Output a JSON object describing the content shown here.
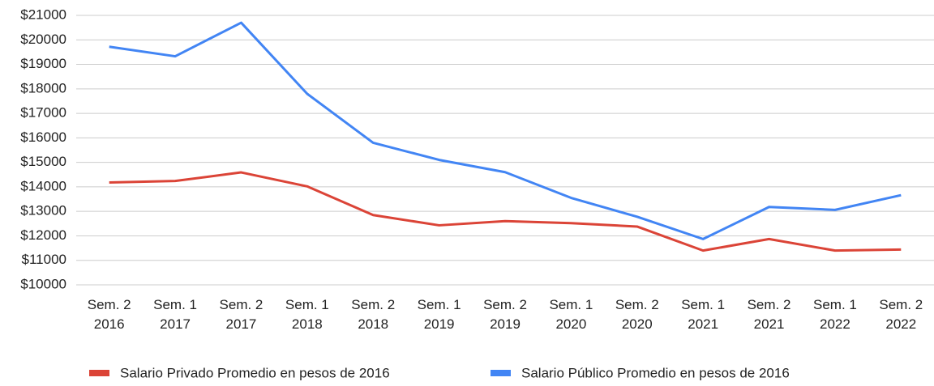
{
  "chart_data": {
    "type": "line",
    "categories": [
      "Sem. 2 2016",
      "Sem. 1 2017",
      "Sem. 2 2017",
      "Sem. 1 2018",
      "Sem. 2 2018",
      "Sem. 1 2019",
      "Sem. 2 2019",
      "Sem. 1 2020",
      "Sem. 2 2020",
      "Sem. 1 2021",
      "Sem. 2 2021",
      "Sem. 1 2022",
      "Sem. 2 2022"
    ],
    "series": [
      {
        "name": "Salario Privado Promedio en pesos de 2016",
        "color": "#db4437",
        "values": [
          14180,
          14240,
          14590,
          14020,
          12850,
          12430,
          12600,
          12520,
          12380,
          11400,
          11870,
          11400,
          11440
        ]
      },
      {
        "name": "Salario Público Promedio en pesos de 2016",
        "color": "#4285f4",
        "values": [
          19720,
          19330,
          20700,
          17800,
          15800,
          15100,
          14600,
          13550,
          12780,
          11870,
          13180,
          13060,
          13660
        ]
      }
    ],
    "ylim": [
      10000,
      21000
    ],
    "yticks": [
      {
        "value": 10000,
        "label": "$10000"
      },
      {
        "value": 11000,
        "label": "$11000"
      },
      {
        "value": 12000,
        "label": "$12000"
      },
      {
        "value": 13000,
        "label": "$13000"
      },
      {
        "value": 14000,
        "label": "$14000"
      },
      {
        "value": 15000,
        "label": "$15000"
      },
      {
        "value": 16000,
        "label": "$16000"
      },
      {
        "value": 17000,
        "label": "$17000"
      },
      {
        "value": 18000,
        "label": "$18000"
      },
      {
        "value": 19000,
        "label": "$19000"
      },
      {
        "value": 20000,
        "label": "$20000"
      },
      {
        "value": 21000,
        "label": "$21000"
      }
    ],
    "grid": true,
    "legend": "bottom"
  }
}
